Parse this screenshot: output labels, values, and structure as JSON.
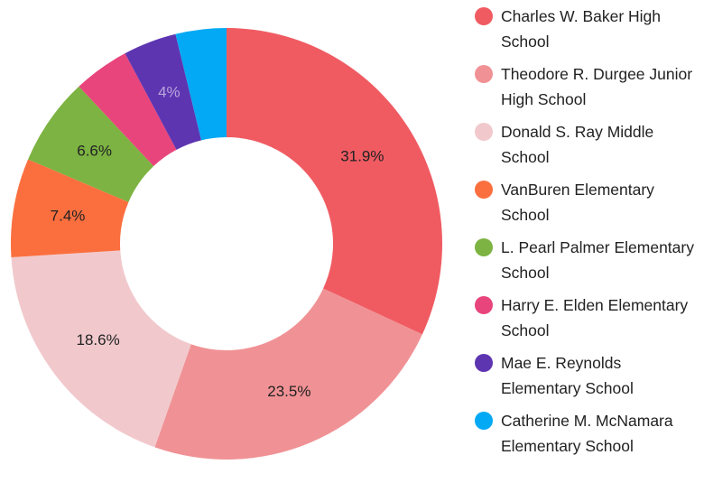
{
  "chart_data": {
    "type": "donut",
    "categories": [
      "Charles W. Baker High School",
      "Theodore R. Durgee Junior High School",
      "Donald S. Ray Middle School",
      "VanBuren Elementary School",
      "L. Pearl Palmer Elementary School",
      "Harry E. Elden Elementary School",
      "Mae E. Reynolds Elementary School",
      "Catherine M. McNamara Elementary School"
    ],
    "values": [
      31.9,
      23.5,
      18.6,
      7.4,
      6.6,
      4.2,
      4,
      3.8
    ],
    "value_labels": [
      "31.9%",
      "23.5%",
      "18.6%",
      "7.4%",
      "6.6%",
      null,
      "4%",
      null
    ],
    "colors": [
      "#f05b62",
      "#f09295",
      "#f1c9cd",
      "#fb6f3f",
      "#7cb342",
      "#e8457c",
      "#5e35b1",
      "#03a9f4"
    ],
    "legend": "right"
  }
}
